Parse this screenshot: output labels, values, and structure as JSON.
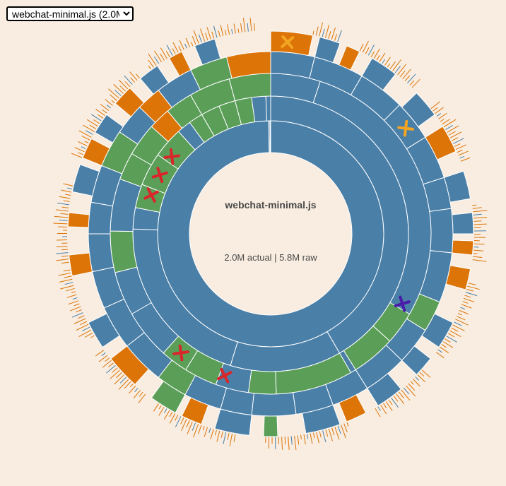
{
  "selector": {
    "selected": "webchat-minimal.js (2.0M)",
    "options": [
      "webchat-minimal.js (2.0M)"
    ]
  },
  "colors": {
    "background": "#f8ede0",
    "module": "#4a7fa8",
    "package": "#5a9e58",
    "leaf": "#dd7408",
    "duplicate_marker": "#d9262a",
    "warning_marker": "#f2a521",
    "special_marker": "#4a1aa8"
  },
  "chart_data": {
    "type": "sunburst",
    "title": "webchat-minimal.js",
    "subtitle": "2.0M actual | 5.8M raw",
    "total_actual": "2.0M",
    "total_raw": "5.8M",
    "rings": [
      {
        "level": 1,
        "arcs": [
          {
            "start": 0.0,
            "end": 359.0,
            "kind": "module"
          },
          {
            "start": 359.0,
            "end": 359.6,
            "kind": "module"
          },
          {
            "start": 359.6,
            "end": 360.0,
            "kind": "module"
          }
        ]
      },
      {
        "level": 2,
        "arcs": [
          {
            "start": 0.0,
            "end": 150.0,
            "kind": "module"
          },
          {
            "start": 150.0,
            "end": 197.0,
            "kind": "module"
          },
          {
            "start": 197.0,
            "end": 272.0,
            "kind": "module"
          },
          {
            "start": 272.0,
            "end": 281.0,
            "kind": "module"
          },
          {
            "start": 281.0,
            "end": 291.0,
            "kind": "package"
          },
          {
            "start": 291.0,
            "end": 305.0,
            "kind": "package"
          },
          {
            "start": 305.0,
            "end": 318.0,
            "kind": "package"
          },
          {
            "start": 318.0,
            "end": 324.0,
            "kind": "module"
          },
          {
            "start": 324.0,
            "end": 330.0,
            "kind": "package"
          },
          {
            "start": 330.0,
            "end": 338.0,
            "kind": "package"
          },
          {
            "start": 338.0,
            "end": 345.0,
            "kind": "package"
          },
          {
            "start": 345.0,
            "end": 352.0,
            "kind": "package"
          },
          {
            "start": 352.0,
            "end": 358.0,
            "kind": "module"
          },
          {
            "start": 358.0,
            "end": 360.0,
            "kind": "module"
          }
        ]
      },
      {
        "level": 3,
        "arcs": [
          {
            "start": 0.0,
            "end": 18.0,
            "kind": "module"
          },
          {
            "start": 18.0,
            "end": 120.0,
            "kind": "module"
          },
          {
            "start": 120.0,
            "end": 132.0,
            "kind": "package"
          },
          {
            "start": 132.0,
            "end": 148.0,
            "kind": "package"
          },
          {
            "start": 148.0,
            "end": 150.0,
            "kind": "module"
          },
          {
            "start": 150.0,
            "end": 178.0,
            "kind": "package"
          },
          {
            "start": 178.0,
            "end": 188.0,
            "kind": "package"
          },
          {
            "start": 188.0,
            "end": 200.0,
            "kind": "module"
          },
          {
            "start": 200.0,
            "end": 212.0,
            "kind": "package"
          },
          {
            "start": 212.0,
            "end": 222.0,
            "kind": "package"
          },
          {
            "start": 222.0,
            "end": 240.0,
            "kind": "module"
          },
          {
            "start": 240.0,
            "end": 256.0,
            "kind": "module"
          },
          {
            "start": 256.0,
            "end": 271.0,
            "kind": "package"
          },
          {
            "start": 271.0,
            "end": 290.0,
            "kind": "module"
          },
          {
            "start": 290.0,
            "end": 300.0,
            "kind": "package"
          },
          {
            "start": 300.0,
            "end": 312.0,
            "kind": "package"
          },
          {
            "start": 312.0,
            "end": 320.0,
            "kind": "leaf"
          },
          {
            "start": 320.0,
            "end": 330.0,
            "kind": "package"
          },
          {
            "start": 330.0,
            "end": 345.0,
            "kind": "package"
          },
          {
            "start": 345.0,
            "end": 360.0,
            "kind": "package"
          }
        ]
      },
      {
        "level": 4,
        "arcs": [
          {
            "start": 0.0,
            "end": 14.0,
            "kind": "module"
          },
          {
            "start": 14.0,
            "end": 30.0,
            "kind": "module"
          },
          {
            "start": 30.0,
            "end": 45.0,
            "kind": "module"
          },
          {
            "start": 45.0,
            "end": 58.0,
            "kind": "module"
          },
          {
            "start": 58.0,
            "end": 72.0,
            "kind": "module"
          },
          {
            "start": 72.0,
            "end": 82.0,
            "kind": "module"
          },
          {
            "start": 82.0,
            "end": 96.0,
            "kind": "module"
          },
          {
            "start": 96.0,
            "end": 112.0,
            "kind": "module"
          },
          {
            "start": 112.0,
            "end": 122.0,
            "kind": "package"
          },
          {
            "start": 122.0,
            "end": 134.0,
            "kind": "module"
          },
          {
            "start": 134.0,
            "end": 148.0,
            "kind": "module"
          },
          {
            "start": 148.0,
            "end": 160.0,
            "kind": "module"
          },
          {
            "start": 160.0,
            "end": 172.0,
            "kind": "module"
          },
          {
            "start": 172.0,
            "end": 186.0,
            "kind": "module"
          },
          {
            "start": 186.0,
            "end": 196.0,
            "kind": "module"
          },
          {
            "start": 196.0,
            "end": 208.0,
            "kind": "module"
          },
          {
            "start": 208.0,
            "end": 218.0,
            "kind": "package"
          },
          {
            "start": 218.0,
            "end": 232.0,
            "kind": "module"
          },
          {
            "start": 232.0,
            "end": 246.0,
            "kind": "module"
          },
          {
            "start": 246.0,
            "end": 258.0,
            "kind": "module"
          },
          {
            "start": 258.0,
            "end": 270.0,
            "kind": "module"
          },
          {
            "start": 270.0,
            "end": 280.0,
            "kind": "module"
          },
          {
            "start": 280.0,
            "end": 292.0,
            "kind": "module"
          },
          {
            "start": 292.0,
            "end": 304.0,
            "kind": "package"
          },
          {
            "start": 304.0,
            "end": 314.0,
            "kind": "module"
          },
          {
            "start": 314.0,
            "end": 322.0,
            "kind": "leaf"
          },
          {
            "start": 322.0,
            "end": 334.0,
            "kind": "module"
          },
          {
            "start": 334.0,
            "end": 346.0,
            "kind": "package"
          },
          {
            "start": 346.0,
            "end": 360.0,
            "kind": "leaf"
          }
        ]
      },
      {
        "level": 5,
        "arcs": [
          {
            "start": 0.0,
            "end": 12.0,
            "kind": "leaf"
          },
          {
            "start": 14.0,
            "end": 20.0,
            "kind": "module"
          },
          {
            "start": 22.0,
            "end": 26.0,
            "kind": "leaf"
          },
          {
            "start": 30.0,
            "end": 38.0,
            "kind": "module"
          },
          {
            "start": 46.0,
            "end": 54.0,
            "kind": "module"
          },
          {
            "start": 58.0,
            "end": 66.0,
            "kind": "leaf"
          },
          {
            "start": 72.0,
            "end": 80.0,
            "kind": "module"
          },
          {
            "start": 84.0,
            "end": 90.0,
            "kind": "module"
          },
          {
            "start": 92.0,
            "end": 96.0,
            "kind": "leaf"
          },
          {
            "start": 100.0,
            "end": 106.0,
            "kind": "leaf"
          },
          {
            "start": 116.0,
            "end": 124.0,
            "kind": "module"
          },
          {
            "start": 128.0,
            "end": 134.0,
            "kind": "module"
          },
          {
            "start": 140.0,
            "end": 148.0,
            "kind": "module"
          },
          {
            "start": 152.0,
            "end": 158.0,
            "kind": "leaf"
          },
          {
            "start": 160.0,
            "end": 170.0,
            "kind": "module"
          },
          {
            "start": 178.0,
            "end": 182.0,
            "kind": "package"
          },
          {
            "start": 186.0,
            "end": 196.0,
            "kind": "module"
          },
          {
            "start": 200.0,
            "end": 206.0,
            "kind": "leaf"
          },
          {
            "start": 208.0,
            "end": 216.0,
            "kind": "package"
          },
          {
            "start": 222.0,
            "end": 232.0,
            "kind": "leaf"
          },
          {
            "start": 236.0,
            "end": 244.0,
            "kind": "module"
          },
          {
            "start": 258.0,
            "end": 264.0,
            "kind": "leaf"
          },
          {
            "start": 272.0,
            "end": 276.0,
            "kind": "leaf"
          },
          {
            "start": 282.0,
            "end": 290.0,
            "kind": "module"
          },
          {
            "start": 292.0,
            "end": 298.0,
            "kind": "leaf"
          },
          {
            "start": 300.0,
            "end": 306.0,
            "kind": "module"
          },
          {
            "start": 310.0,
            "end": 316.0,
            "kind": "leaf"
          },
          {
            "start": 320.0,
            "end": 326.0,
            "kind": "module"
          },
          {
            "start": 330.0,
            "end": 334.0,
            "kind": "leaf"
          },
          {
            "start": 338.0,
            "end": 344.0,
            "kind": "module"
          }
        ]
      }
    ],
    "fringes": [
      {
        "start": 12.0,
        "end": 20.0,
        "level": 5
      },
      {
        "start": 26.0,
        "end": 44.0,
        "level": 5
      },
      {
        "start": 52.0,
        "end": 70.0,
        "level": 5
      },
      {
        "start": 82.0,
        "end": 98.0,
        "level": 5
      },
      {
        "start": 104.0,
        "end": 126.0,
        "level": 5
      },
      {
        "start": 132.0,
        "end": 150.0,
        "level": 5
      },
      {
        "start": 158.0,
        "end": 182.0,
        "level": 5
      },
      {
        "start": 190.0,
        "end": 214.0,
        "level": 5
      },
      {
        "start": 218.0,
        "end": 236.0,
        "level": 5
      },
      {
        "start": 240.0,
        "end": 260.0,
        "level": 5
      },
      {
        "start": 262.0,
        "end": 284.0,
        "level": 5
      },
      {
        "start": 292.0,
        "end": 320.0,
        "level": 5
      },
      {
        "start": 324.0,
        "end": 356.0,
        "level": 5
      }
    ],
    "markers": [
      {
        "kind": "warning",
        "level": 5,
        "angle": 5
      },
      {
        "kind": "warning",
        "level": 4,
        "angle": 52
      },
      {
        "kind": "special",
        "level": 3,
        "angle": 118
      },
      {
        "kind": "duplicate",
        "level": 3,
        "angle": 198
      },
      {
        "kind": "duplicate",
        "level": 3,
        "angle": 217
      },
      {
        "kind": "duplicate",
        "level": 2,
        "angle": 288
      },
      {
        "kind": "duplicate",
        "level": 2,
        "angle": 298
      },
      {
        "kind": "duplicate",
        "level": 2,
        "angle": 308
      }
    ]
  }
}
